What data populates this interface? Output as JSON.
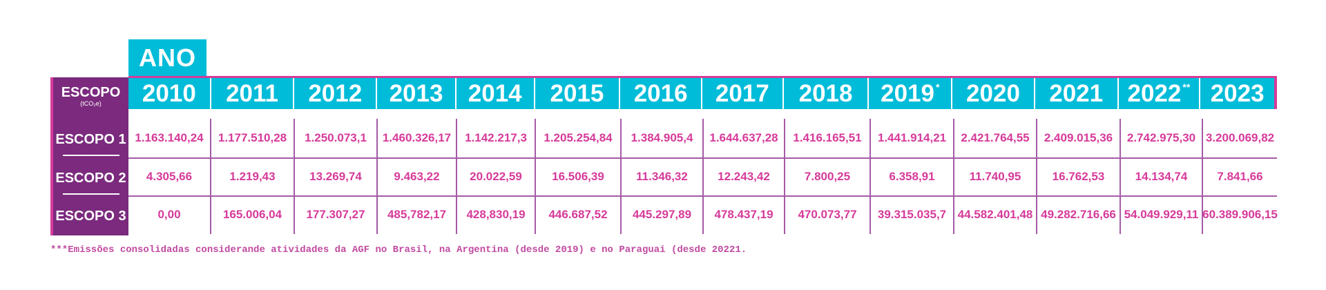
{
  "header": {
    "ano_label": "ANO",
    "escopo_label": "ESCOPO",
    "escopo_unit": "(tCO₂e)",
    "years": [
      {
        "label": "2010",
        "mark": ""
      },
      {
        "label": "2011",
        "mark": ""
      },
      {
        "label": "2012",
        "mark": ""
      },
      {
        "label": "2013",
        "mark": ""
      },
      {
        "label": "2014",
        "mark": ""
      },
      {
        "label": "2015",
        "mark": ""
      },
      {
        "label": "2016",
        "mark": ""
      },
      {
        "label": "2017",
        "mark": ""
      },
      {
        "label": "2018",
        "mark": ""
      },
      {
        "label": "2019",
        "mark": "*"
      },
      {
        "label": "2020",
        "mark": ""
      },
      {
        "label": "2021",
        "mark": ""
      },
      {
        "label": "2022",
        "mark": "**"
      },
      {
        "label": "2023",
        "mark": ""
      }
    ]
  },
  "rows": [
    {
      "label": "ESCOPO 1",
      "values": [
        "1.163.140,24",
        "1.177.510,28",
        "1.250.073,1",
        "1.460.326,17",
        "1.142.217,3",
        "1.205.254,84",
        "1.384.905,4",
        "1.644.637,28",
        "1.416.165,51",
        "1.441.914,21",
        "2.421.764,55",
        "2.409.015,36",
        "2.742.975,30",
        "3.200.069,82"
      ]
    },
    {
      "label": "ESCOPO 2",
      "values": [
        "4.305,66",
        "1.219,43",
        "13.269,74",
        "9.463,22",
        "20.022,59",
        "16.506,39",
        "11.346,32",
        "12.243,42",
        "7.800,25",
        "6.358,91",
        "11.740,95",
        "16.762,53",
        "14.134,74",
        "7.841,66"
      ]
    },
    {
      "label": "ESCOPO 3",
      "values": [
        "0,00",
        "165.006,04",
        "177.307,27",
        "485,782,17",
        "428,830,19",
        "446.687,52",
        "445.297,89",
        "478.437,19",
        "470.073,77",
        "39.315.035,7",
        "44.582.401,48",
        "49.282.716,66",
        "54.049.929,11",
        "60.389.906,15"
      ]
    }
  ],
  "footnote": "***Emissões consolidadas considerande atividades da AGF no Brasil, na Argentina (desde 2019) e no Paraguai (desde 20221.",
  "colors": {
    "cyan": "#00bcd9",
    "purple": "#7b2a7e",
    "magenta": "#d63a9a"
  }
}
